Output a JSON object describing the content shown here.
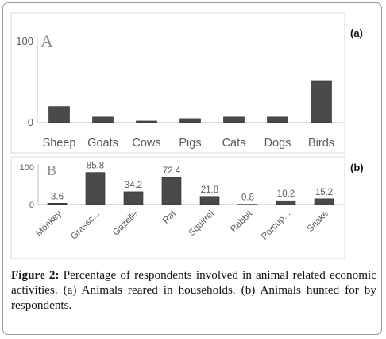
{
  "chart_data": [
    {
      "type": "bar",
      "panel_tag": "(a)",
      "inset_label": "A",
      "categories": [
        "Sheep",
        "Goats",
        "Cows",
        "Pigs",
        "Cats",
        "Dogs",
        "Birds"
      ],
      "values": [
        20,
        7,
        2,
        5,
        7,
        7,
        51
      ],
      "ylim": [
        0,
        100
      ],
      "yticks": [
        "0",
        "100"
      ],
      "bar_color": "#4a4a4a",
      "grid": false
    },
    {
      "type": "bar",
      "panel_tag": "(b)",
      "inset_label": "B",
      "categories": [
        "Monkey",
        "Grassc...",
        "Gazelle",
        "Rat",
        "Squirrel",
        "Rabbit",
        "Porcup...",
        "Snake"
      ],
      "values": [
        3.6,
        85.8,
        34.2,
        72.4,
        21.8,
        0.8,
        10.2,
        15.2
      ],
      "data_labels": [
        "3.6",
        "85.8",
        "34.2",
        "72.4",
        "21.8",
        "0.8",
        "10.2",
        "15.2"
      ],
      "ylim": [
        0,
        100
      ],
      "yticks": [
        "0",
        "100"
      ],
      "bar_color": "#4a4a4a",
      "grid": false
    }
  ],
  "caption": {
    "label": "Figure 2:",
    "text": " Percentage of respondents involved in animal related economic activities. (a) Animals reared in households. (b) Animals hunted for by respondents."
  }
}
